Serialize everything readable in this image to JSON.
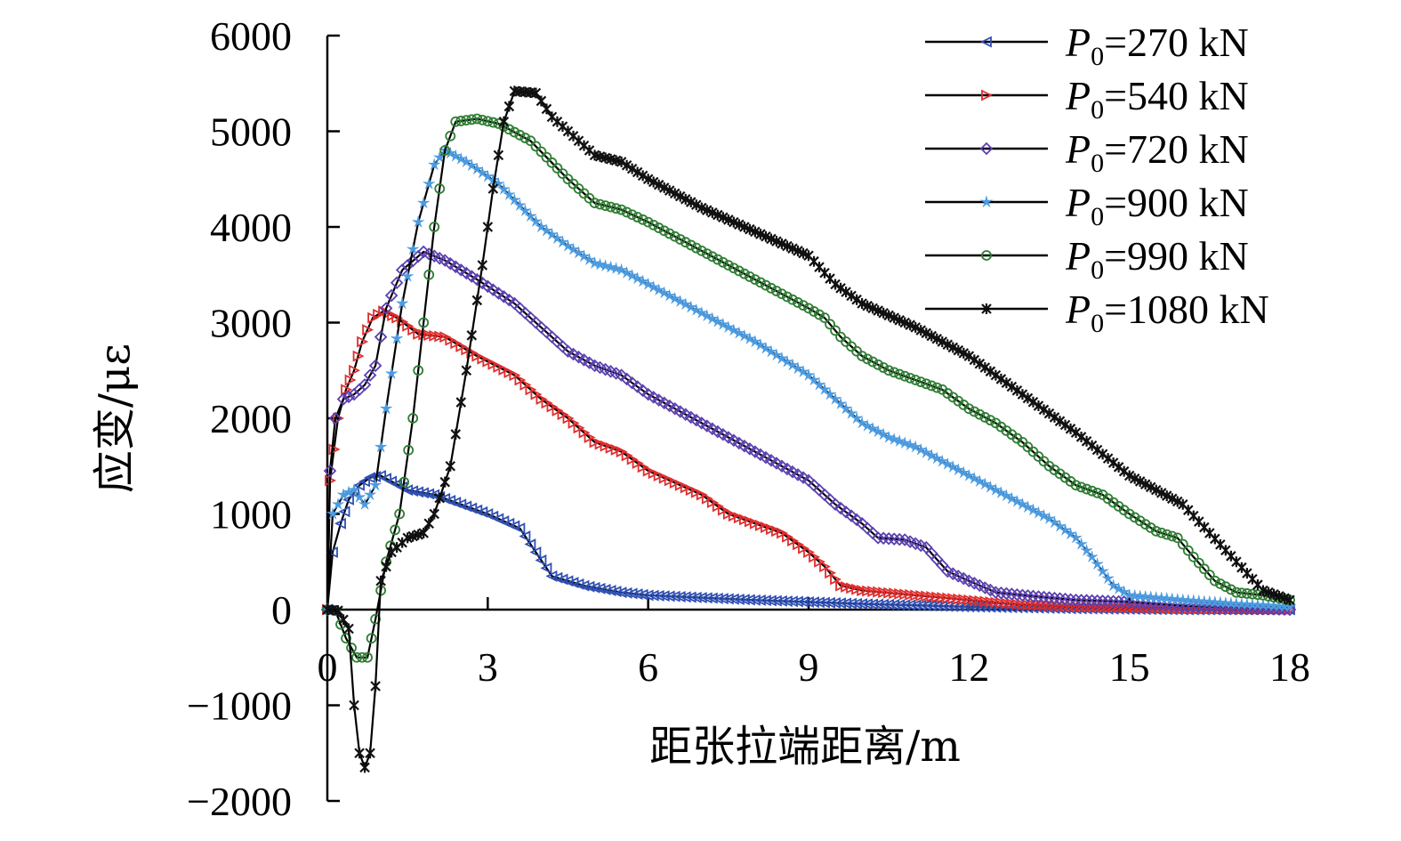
{
  "chart_data": {
    "type": "line",
    "xlabel": "距张拉端距离/m",
    "ylabel": "应变/με",
    "xlim": [
      0,
      18
    ],
    "ylim": [
      -2000,
      6000
    ],
    "xticks": [
      "0",
      "3",
      "6",
      "9",
      "12",
      "15",
      "18"
    ],
    "yticks": [
      "6000",
      "5000",
      "4000",
      "3000",
      "2000",
      "1000",
      "0",
      "−1000",
      "−2000"
    ],
    "grid": false,
    "legend_position": "top-right",
    "series": [
      {
        "name": "P0=270 kN",
        "name_parts": {
          "symbol": "P",
          "subscript": "0",
          "value": "=270 kN"
        },
        "color": "#2e4fb3",
        "marker": "triangle-left",
        "points": [
          [
            0,
            0
          ],
          [
            0.1,
            600
          ],
          [
            0.25,
            900
          ],
          [
            0.4,
            1150
          ],
          [
            0.6,
            1300
          ],
          [
            0.8,
            1380
          ],
          [
            1,
            1400
          ],
          [
            1.5,
            1250
          ],
          [
            2,
            1200
          ],
          [
            2.5,
            1100
          ],
          [
            3,
            1000
          ],
          [
            3.6,
            850
          ],
          [
            3.9,
            600
          ],
          [
            4.2,
            350
          ],
          [
            4.8,
            250
          ],
          [
            5.5,
            180
          ],
          [
            6,
            150
          ],
          [
            8,
            100
          ],
          [
            10,
            60
          ],
          [
            12,
            30
          ],
          [
            14,
            10
          ],
          [
            16,
            0
          ],
          [
            18,
            0
          ]
        ]
      },
      {
        "name": "P0=540 kN",
        "name_parts": {
          "symbol": "P",
          "subscript": "0",
          "value": "=540 kN"
        },
        "color": "#e02d2d",
        "marker": "triangle-right",
        "points": [
          [
            0,
            0
          ],
          [
            0.05,
            1350
          ],
          [
            0.2,
            2000
          ],
          [
            0.35,
            2300
          ],
          [
            0.5,
            2500
          ],
          [
            0.65,
            2800
          ],
          [
            0.85,
            3050
          ],
          [
            1.05,
            3120
          ],
          [
            1.3,
            3050
          ],
          [
            1.7,
            2880
          ],
          [
            2.2,
            2850
          ],
          [
            2.8,
            2650
          ],
          [
            3.5,
            2450
          ],
          [
            4,
            2200
          ],
          [
            4.5,
            2000
          ],
          [
            5,
            1750
          ],
          [
            5.5,
            1650
          ],
          [
            6,
            1450
          ],
          [
            7,
            1200
          ],
          [
            7.5,
            1000
          ],
          [
            8,
            900
          ],
          [
            8.5,
            800
          ],
          [
            9,
            600
          ],
          [
            9.3,
            450
          ],
          [
            9.6,
            250
          ],
          [
            10,
            200
          ],
          [
            11,
            150
          ],
          [
            12,
            100
          ],
          [
            13,
            50
          ],
          [
            14,
            30
          ],
          [
            16,
            10
          ],
          [
            18,
            0
          ]
        ]
      },
      {
        "name": "P0=720 kN",
        "name_parts": {
          "symbol": "P",
          "subscript": "0",
          "value": "=720 kN"
        },
        "color": "#5b3fb0",
        "marker": "diamond",
        "points": [
          [
            0,
            0
          ],
          [
            0.05,
            1450
          ],
          [
            0.15,
            2000
          ],
          [
            0.3,
            2200
          ],
          [
            0.5,
            2250
          ],
          [
            0.7,
            2350
          ],
          [
            0.9,
            2550
          ],
          [
            1.1,
            3150
          ],
          [
            1.4,
            3550
          ],
          [
            1.8,
            3740
          ],
          [
            2.2,
            3650
          ],
          [
            2.8,
            3450
          ],
          [
            3.5,
            3200
          ],
          [
            4,
            2950
          ],
          [
            4.5,
            2700
          ],
          [
            5,
            2550
          ],
          [
            5.5,
            2450
          ],
          [
            6,
            2250
          ],
          [
            7,
            1950
          ],
          [
            8,
            1650
          ],
          [
            8.5,
            1500
          ],
          [
            9,
            1350
          ],
          [
            9.5,
            1100
          ],
          [
            10,
            900
          ],
          [
            10.3,
            750
          ],
          [
            10.8,
            730
          ],
          [
            11.2,
            650
          ],
          [
            11.6,
            400
          ],
          [
            12,
            300
          ],
          [
            12.5,
            180
          ],
          [
            13,
            150
          ],
          [
            14,
            100
          ],
          [
            15,
            80
          ],
          [
            16,
            40
          ],
          [
            17,
            20
          ],
          [
            18,
            0
          ]
        ]
      },
      {
        "name": "P0=900 kN",
        "name_parts": {
          "symbol": "P",
          "subscript": "0",
          "value": "=900 kN"
        },
        "color": "#4c9be0",
        "marker": "star",
        "points": [
          [
            0,
            0
          ],
          [
            0.1,
            1000
          ],
          [
            0.3,
            1200
          ],
          [
            0.5,
            1250
          ],
          [
            0.7,
            1100
          ],
          [
            0.9,
            1300
          ],
          [
            1.1,
            2100
          ],
          [
            1.4,
            3200
          ],
          [
            1.7,
            4050
          ],
          [
            2,
            4650
          ],
          [
            2.2,
            4800
          ],
          [
            2.6,
            4680
          ],
          [
            3.2,
            4450
          ],
          [
            4,
            4000
          ],
          [
            4.5,
            3800
          ],
          [
            5,
            3620
          ],
          [
            5.5,
            3550
          ],
          [
            6,
            3400
          ],
          [
            7,
            3100
          ],
          [
            8,
            2800
          ],
          [
            9,
            2450
          ],
          [
            9.5,
            2200
          ],
          [
            10,
            1950
          ],
          [
            10.5,
            1800
          ],
          [
            11,
            1700
          ],
          [
            11.5,
            1550
          ],
          [
            12,
            1400
          ],
          [
            12.5,
            1250
          ],
          [
            13,
            1100
          ],
          [
            13.5,
            950
          ],
          [
            14,
            750
          ],
          [
            14.3,
            550
          ],
          [
            14.7,
            250
          ],
          [
            15,
            150
          ],
          [
            16,
            100
          ],
          [
            17,
            60
          ],
          [
            18,
            30
          ]
        ]
      },
      {
        "name": "P0=990 kN",
        "name_parts": {
          "symbol": "P",
          "subscript": "0",
          "value": "=990 kN"
        },
        "color": "#2e7d32",
        "marker": "circle",
        "points": [
          [
            0,
            0
          ],
          [
            0.15,
            -10
          ],
          [
            0.35,
            -300
          ],
          [
            0.55,
            -500
          ],
          [
            0.75,
            -500
          ],
          [
            0.9,
            -100
          ],
          [
            1.1,
            500
          ],
          [
            1.35,
            1000
          ],
          [
            1.6,
            2000
          ],
          [
            1.8,
            3000
          ],
          [
            2,
            4000
          ],
          [
            2.2,
            4800
          ],
          [
            2.4,
            5100
          ],
          [
            2.8,
            5130
          ],
          [
            3.2,
            5080
          ],
          [
            3.8,
            4900
          ],
          [
            4.5,
            4500
          ],
          [
            5,
            4250
          ],
          [
            5.5,
            4180
          ],
          [
            6,
            4050
          ],
          [
            7,
            3750
          ],
          [
            8,
            3450
          ],
          [
            9,
            3150
          ],
          [
            9.3,
            3050
          ],
          [
            9.6,
            2850
          ],
          [
            10,
            2650
          ],
          [
            10.5,
            2500
          ],
          [
            11,
            2400
          ],
          [
            11.5,
            2300
          ],
          [
            12,
            2100
          ],
          [
            12.5,
            1950
          ],
          [
            13,
            1750
          ],
          [
            13.5,
            1500
          ],
          [
            14,
            1300
          ],
          [
            14.5,
            1200
          ],
          [
            15,
            1000
          ],
          [
            15.5,
            820
          ],
          [
            15.9,
            750
          ],
          [
            16.2,
            550
          ],
          [
            16.6,
            300
          ],
          [
            17,
            180
          ],
          [
            17.5,
            150
          ],
          [
            18,
            100
          ]
        ]
      },
      {
        "name": "P0=1080 kN",
        "name_parts": {
          "symbol": "P",
          "subscript": "0",
          "value": "=1080 kN"
        },
        "color": "#111111",
        "marker": "asterisk",
        "points": [
          [
            0,
            0
          ],
          [
            0.2,
            -10
          ],
          [
            0.4,
            -200
          ],
          [
            0.5,
            -1000
          ],
          [
            0.6,
            -1500
          ],
          [
            0.7,
            -1650
          ],
          [
            0.8,
            -1500
          ],
          [
            0.9,
            -800
          ],
          [
            1,
            300
          ],
          [
            1.2,
            600
          ],
          [
            1.5,
            750
          ],
          [
            1.8,
            800
          ],
          [
            2,
            1000
          ],
          [
            2.3,
            1500
          ],
          [
            2.6,
            2500
          ],
          [
            2.9,
            3600
          ],
          [
            3.1,
            4400
          ],
          [
            3.3,
            5100
          ],
          [
            3.5,
            5420
          ],
          [
            3.9,
            5400
          ],
          [
            4.2,
            5150
          ],
          [
            4.6,
            4950
          ],
          [
            5,
            4750
          ],
          [
            5.5,
            4680
          ],
          [
            6,
            4500
          ],
          [
            7,
            4200
          ],
          [
            8,
            3950
          ],
          [
            9,
            3700
          ],
          [
            9.5,
            3400
          ],
          [
            10,
            3200
          ],
          [
            11,
            2950
          ],
          [
            12,
            2650
          ],
          [
            13,
            2250
          ],
          [
            14,
            1850
          ],
          [
            15,
            1400
          ],
          [
            15.5,
            1250
          ],
          [
            16,
            1100
          ],
          [
            16.5,
            800
          ],
          [
            17,
            500
          ],
          [
            17.5,
            200
          ],
          [
            18,
            100
          ]
        ]
      }
    ]
  }
}
